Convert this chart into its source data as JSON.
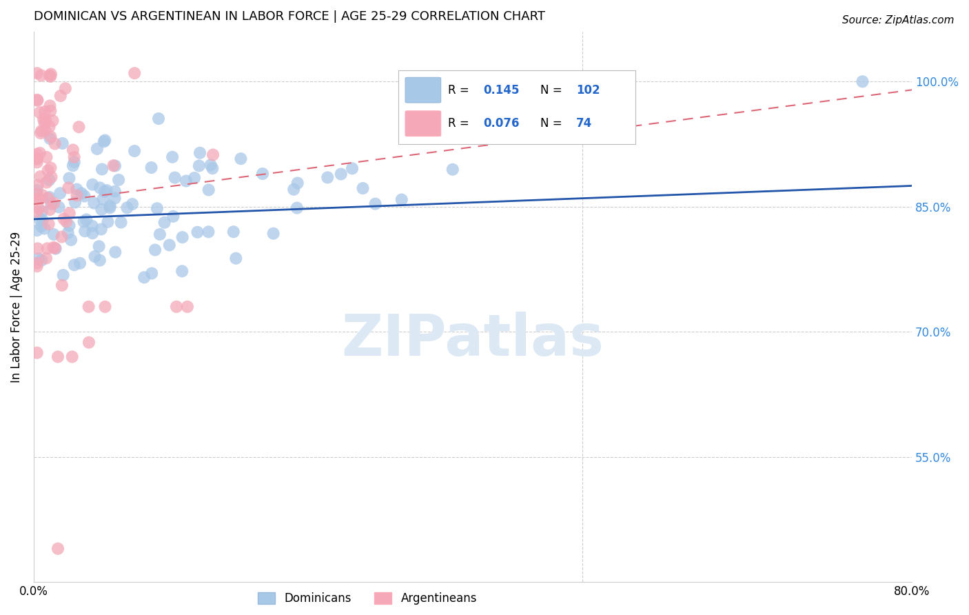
{
  "title": "DOMINICAN VS ARGENTINEAN IN LABOR FORCE | AGE 25-29 CORRELATION CHART",
  "source": "Source: ZipAtlas.com",
  "ylabel": "In Labor Force | Age 25-29",
  "watermark": "ZIPatlas",
  "xlim": [
    0.0,
    0.8
  ],
  "ylim": [
    0.4,
    1.06
  ],
  "yticks": [
    0.55,
    0.7,
    0.85,
    1.0
  ],
  "ytick_labels": [
    "55.0%",
    "70.0%",
    "85.0%",
    "100.0%"
  ],
  "blue_R": 0.145,
  "blue_N": 102,
  "pink_R": 0.076,
  "pink_N": 74,
  "blue_color": "#A8C8E8",
  "pink_color": "#F4A8B8",
  "blue_line_color": "#2255AA",
  "pink_line_color": "#DD6677",
  "legend_blue_label": "Dominicans",
  "legend_pink_label": "Argentineans",
  "title_fontsize": 13,
  "axis_label_fontsize": 12,
  "tick_fontsize": 12,
  "legend_fontsize": 12,
  "source_fontsize": 11
}
